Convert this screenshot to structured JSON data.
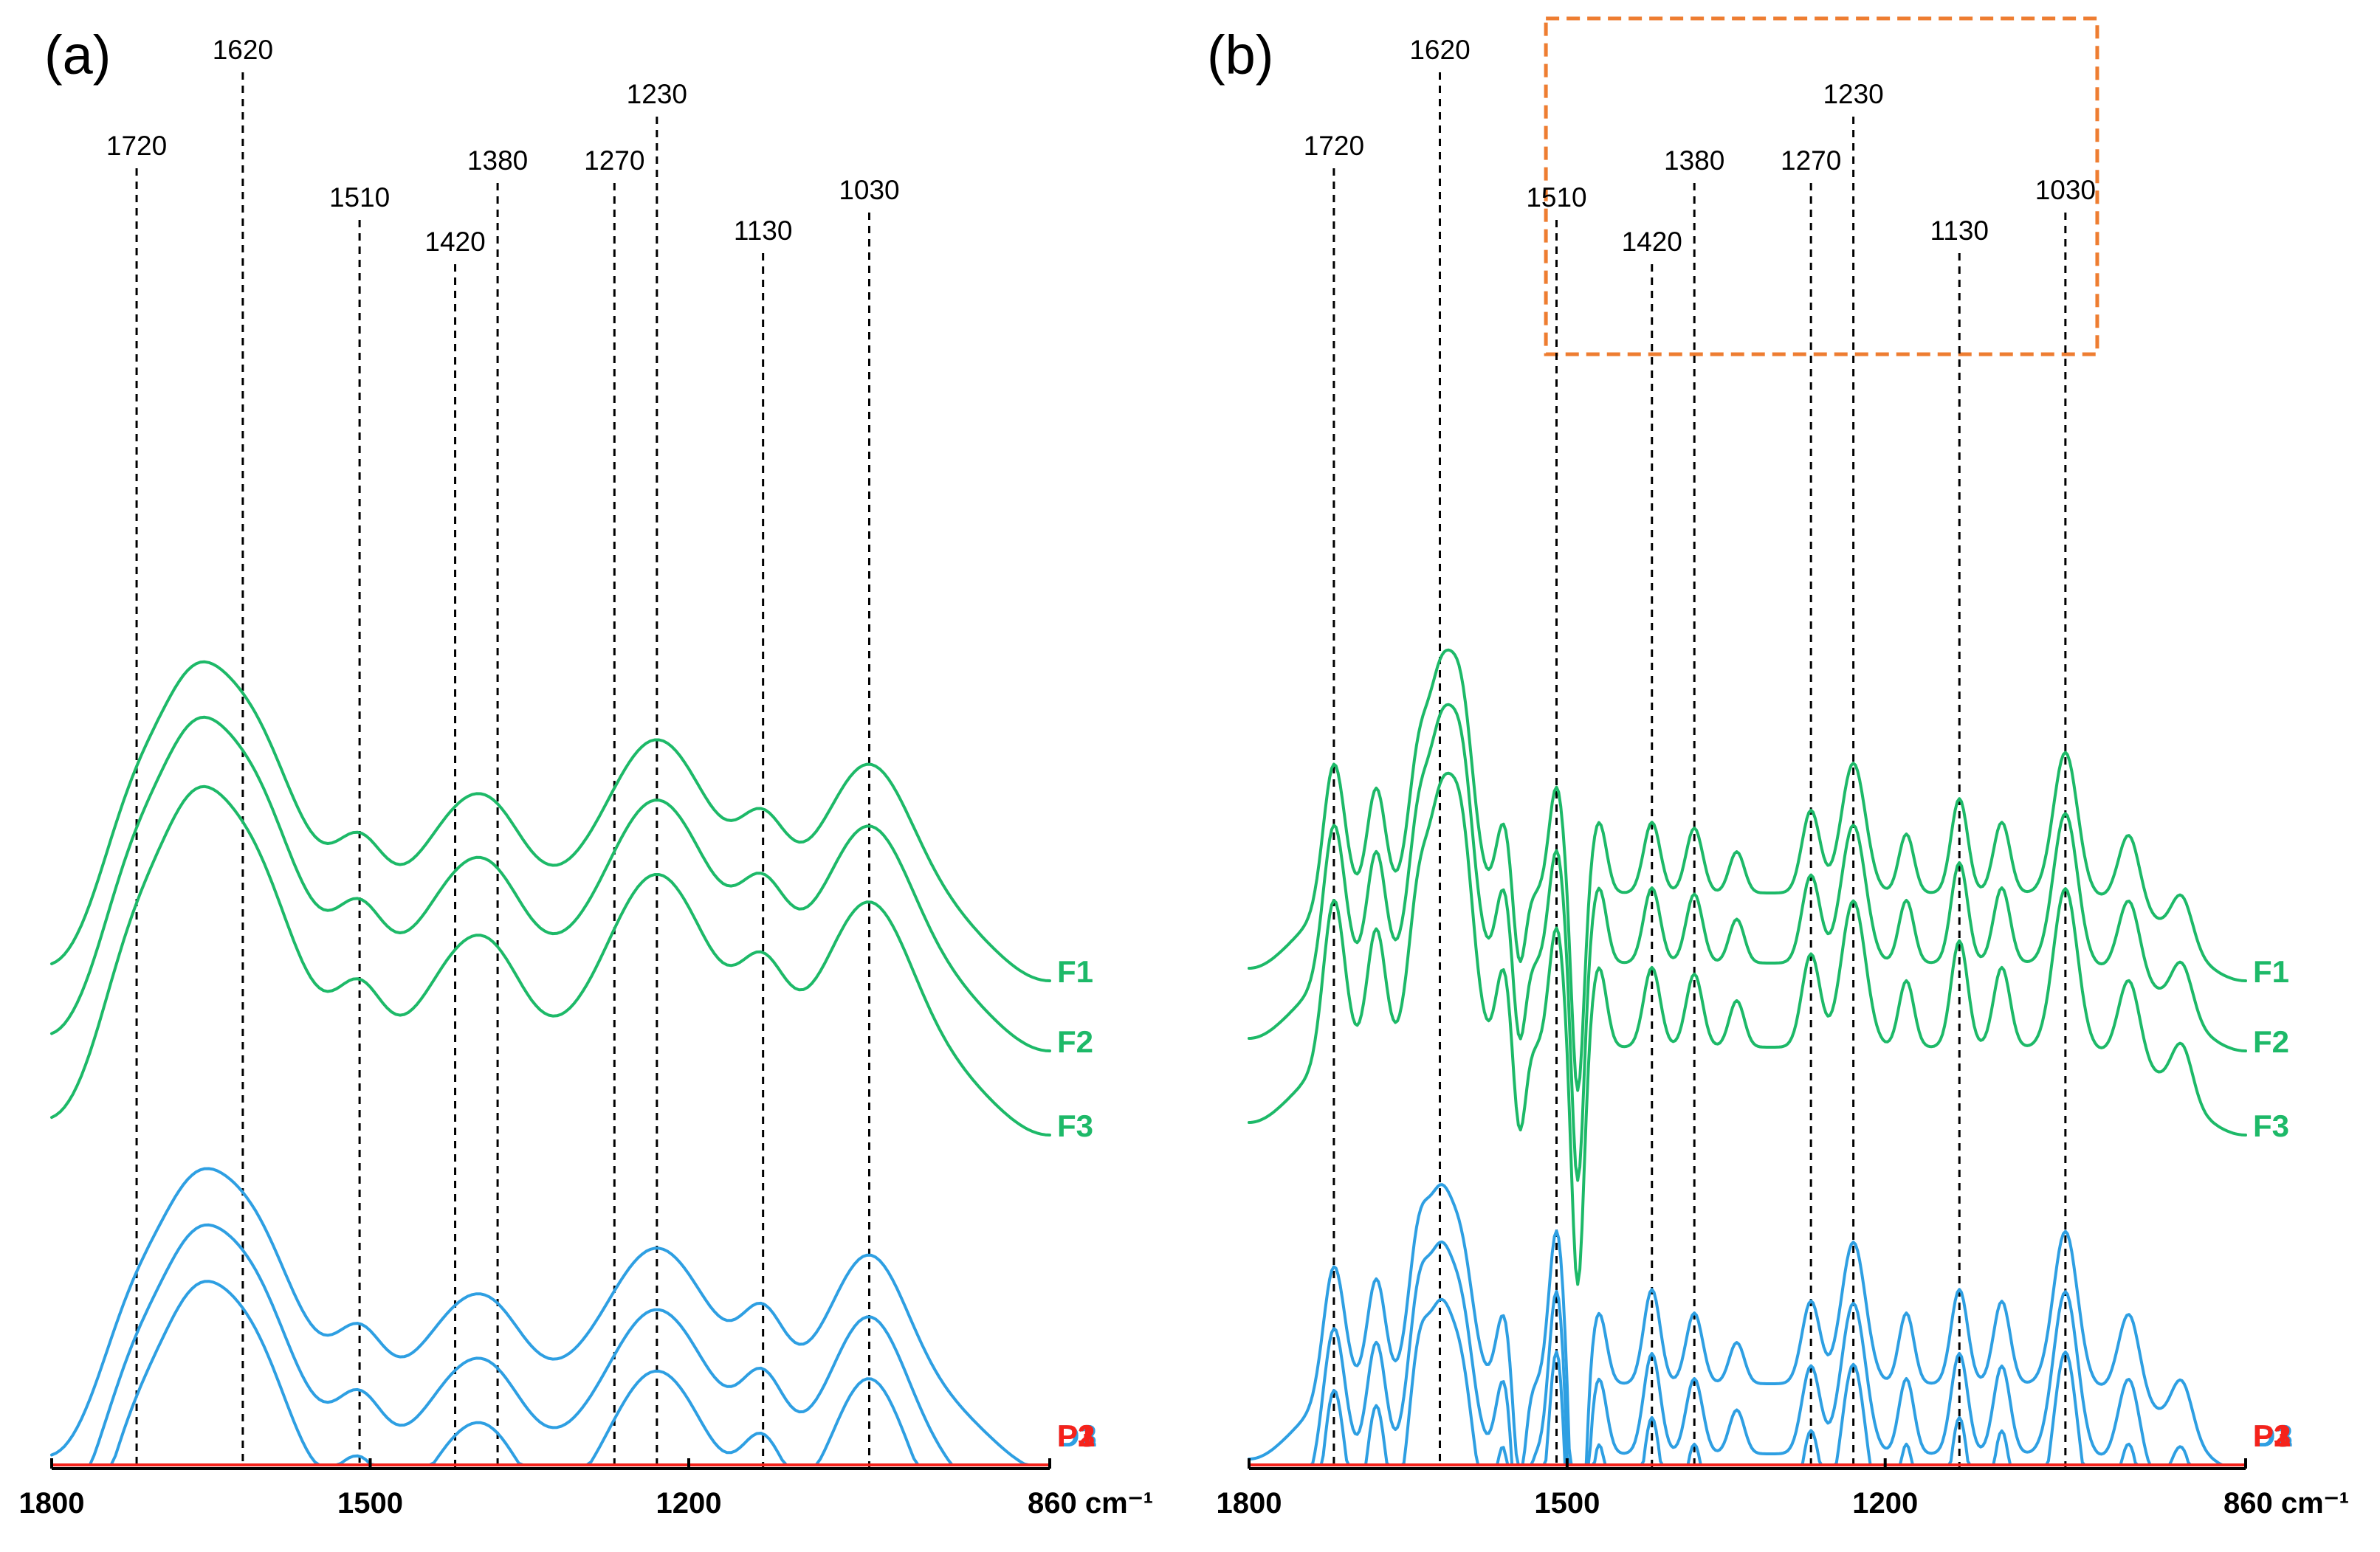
{
  "chart_data": [
    {
      "panel": "(a)",
      "type": "line",
      "title": "",
      "xlabel": "",
      "ylabel": "",
      "xlim": [
        1800,
        860
      ],
      "x_reversed": true,
      "x_ticks": [
        {
          "value": 1800,
          "label": "1800"
        },
        {
          "value": 1500,
          "label": "1500"
        },
        {
          "value": 1200,
          "label": "1200"
        },
        {
          "value": 860,
          "label": "860 cm⁻¹"
        }
      ],
      "reference_lines": [
        {
          "value": 1720,
          "label": "1720"
        },
        {
          "value": 1620,
          "label": "1620"
        },
        {
          "value": 1510,
          "label": "1510"
        },
        {
          "value": 1420,
          "label": "1420"
        },
        {
          "value": 1380,
          "label": "1380"
        },
        {
          "value": 1270,
          "label": "1270"
        },
        {
          "value": 1230,
          "label": "1230"
        },
        {
          "value": 1130,
          "label": "1130"
        },
        {
          "value": 1030,
          "label": "1030"
        }
      ],
      "series": [
        {
          "name": "F1",
          "group": "F",
          "offset": 9.0
        },
        {
          "name": "F2",
          "group": "F",
          "offset": 8.5
        },
        {
          "name": "F3",
          "group": "F",
          "offset": 7.9
        },
        {
          "name": "D1",
          "group": "D",
          "offset": 5.5
        },
        {
          "name": "D2",
          "group": "D",
          "offset": 5.0
        },
        {
          "name": "D3",
          "group": "D",
          "offset": 4.5
        },
        {
          "name": "P1",
          "group": "P",
          "offset": 2.3
        },
        {
          "name": "P2",
          "group": "P",
          "offset": 1.8
        },
        {
          "name": "P3",
          "group": "P",
          "offset": 1.3
        }
      ]
    },
    {
      "panel": "(b)",
      "type": "line",
      "title": "",
      "xlabel": "",
      "ylabel": "",
      "xlim": [
        1800,
        860
      ],
      "x_reversed": true,
      "x_ticks": [
        {
          "value": 1800,
          "label": "1800"
        },
        {
          "value": 1500,
          "label": "1500"
        },
        {
          "value": 1200,
          "label": "1200"
        },
        {
          "value": 860,
          "label": "860 cm⁻¹"
        }
      ],
      "reference_lines": [
        {
          "value": 1720,
          "label": "1720"
        },
        {
          "value": 1620,
          "label": "1620"
        },
        {
          "value": 1510,
          "label": "1510"
        },
        {
          "value": 1420,
          "label": "1420"
        },
        {
          "value": 1380,
          "label": "1380"
        },
        {
          "value": 1270,
          "label": "1270"
        },
        {
          "value": 1230,
          "label": "1230"
        },
        {
          "value": 1130,
          "label": "1130"
        },
        {
          "value": 1030,
          "label": "1030"
        }
      ],
      "highlight_region": {
        "x_from": 1520,
        "x_to": 1000
      },
      "series": [
        {
          "name": "F1",
          "group": "F",
          "offset": 9.0
        },
        {
          "name": "F2",
          "group": "F",
          "offset": 8.5
        },
        {
          "name": "F3",
          "group": "F",
          "offset": 7.9
        },
        {
          "name": "D1",
          "group": "D",
          "offset": 5.5
        },
        {
          "name": "D2",
          "group": "D",
          "offset": 5.0
        },
        {
          "name": "D3",
          "group": "D",
          "offset": 4.5
        },
        {
          "name": "P1",
          "group": "P",
          "offset": 2.3
        },
        {
          "name": "P2",
          "group": "P",
          "offset": 1.8
        },
        {
          "name": "P3",
          "group": "P",
          "offset": 1.3
        }
      ]
    }
  ],
  "colors": {
    "F": "#1db968",
    "D": "#2e9fe2",
    "P": "#f5221b",
    "highlight": "#ee7d31",
    "axis": "#000000"
  }
}
